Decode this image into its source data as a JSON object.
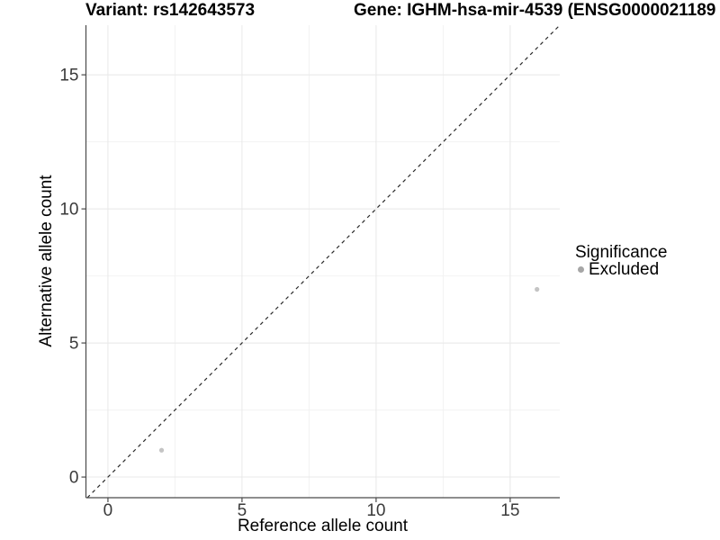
{
  "header": {
    "variant_title": "Variant: rs142643573",
    "gene_title": "Gene: IGHM-hsa-mir-4539 (ENSG0000021189"
  },
  "chart_data": {
    "type": "scatter",
    "xlabel": "Reference allele count",
    "ylabel": "Alternative allele count",
    "xlim": [
      -0.82,
      16.85
    ],
    "ylim": [
      -0.77,
      16.85
    ],
    "xticks": [
      0,
      5,
      10,
      15
    ],
    "yticks": [
      0,
      5,
      10,
      15
    ],
    "x_minor_ticks": [
      2.5,
      7.5,
      12.5
    ],
    "y_minor_ticks": [
      2.5,
      7.5,
      12.5
    ],
    "grid": true,
    "series": [
      {
        "name": "Excluded",
        "color": "#c4c4c4",
        "points": [
          {
            "x": 2,
            "y": 1
          },
          {
            "x": 16,
            "y": 7
          }
        ]
      }
    ],
    "reference_line": {
      "type": "abline",
      "slope": 1,
      "intercept": 0,
      "style": "dashed",
      "color": "#2a2a2a"
    },
    "legend": {
      "title": "Significance",
      "position": "right",
      "items": [
        {
          "label": "Excluded",
          "color": "#a6a6a6",
          "marker": "circle"
        }
      ]
    }
  },
  "colors": {
    "background": "#ffffff",
    "grid_major": "#e8e8e8",
    "grid_minor": "#f2f2f2",
    "axis_line": "#4a4a4a",
    "tick_mark": "#4a4a4a",
    "tick_label": "#3a3a3a"
  }
}
